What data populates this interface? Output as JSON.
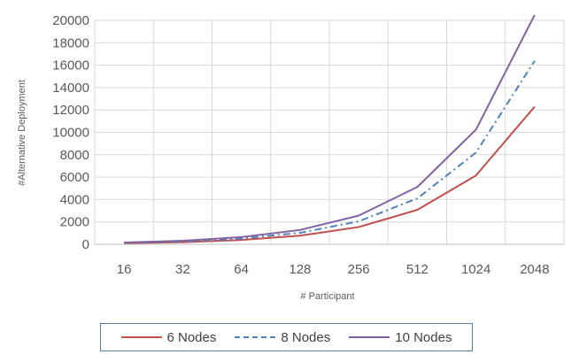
{
  "chart_data": {
    "type": "line",
    "title": "",
    "xlabel": "# Participant",
    "ylabel": "#Alternative Deployment",
    "categories": [
      "16",
      "32",
      "64",
      "128",
      "256",
      "512",
      "1024",
      "2048"
    ],
    "ylim": [
      0,
      20000
    ],
    "yticks": [
      0,
      2000,
      4000,
      6000,
      8000,
      10000,
      12000,
      14000,
      16000,
      18000,
      20000
    ],
    "grid": true,
    "legend_position": "bottom",
    "series": [
      {
        "name": "6 Nodes",
        "color": "#c0504d",
        "style": "solid",
        "values": [
          96,
          192,
          384,
          768,
          1536,
          3072,
          6144,
          12288
        ]
      },
      {
        "name": "8 Nodes",
        "color": "#4f81bd",
        "style": "dash-dot",
        "values": [
          128,
          256,
          512,
          1024,
          2048,
          4096,
          8192,
          16384
        ]
      },
      {
        "name": "10 Nodes",
        "color": "#8064a2",
        "style": "solid",
        "values": [
          160,
          320,
          640,
          1280,
          2560,
          5120,
          10240,
          20480
        ]
      }
    ]
  },
  "legend": {
    "items": [
      {
        "label": "6 Nodes"
      },
      {
        "label": "8 Nodes"
      },
      {
        "label": "10 Nodes"
      }
    ]
  }
}
